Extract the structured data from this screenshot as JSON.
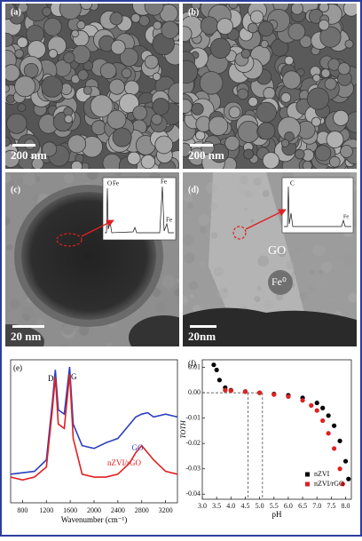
{
  "panels": [
    {
      "label": "(a)",
      "scale_bar": "200 nm"
    },
    {
      "label": "(b)",
      "scale_bar": "200 nm"
    },
    {
      "label": "(c)",
      "scale_bar": "20 nm",
      "inset_labels": [
        "O",
        "Fe",
        "Fe",
        "Fe"
      ]
    },
    {
      "label": "(d)",
      "scale_bar": "20nm",
      "inset_labels": [
        "C",
        "Fe"
      ],
      "annotations": [
        "GO",
        "Fe⁰"
      ]
    }
  ],
  "chart_data": [
    {
      "type": "line",
      "panel_label": "(e)",
      "x_label": "Wavenumber (cm⁻¹)",
      "x": [
        600,
        800,
        1000,
        1200,
        1300,
        1350,
        1400,
        1500,
        1590,
        1650,
        1800,
        2000,
        2200,
        2400,
        2600,
        2700,
        2800,
        2900,
        3000,
        3200,
        3400
      ],
      "xlim": [
        600,
        3400
      ],
      "xticks": [
        800,
        1200,
        1600,
        2000,
        2400,
        2800,
        3200
      ],
      "ylim": [
        0,
        100
      ],
      "annotations": [
        "D",
        "G"
      ],
      "series": [
        {
          "name": "GO",
          "color": "#2b3fc0",
          "values": [
            20,
            21,
            22,
            30,
            70,
            93,
            65,
            62,
            95,
            55,
            40,
            38,
            42,
            45,
            55,
            60,
            62,
            63,
            60,
            62,
            60
          ]
        },
        {
          "name": "nZVI/rGO",
          "color": "#e02020",
          "values": [
            18,
            16,
            18,
            25,
            65,
            88,
            55,
            52,
            90,
            45,
            20,
            18,
            18,
            20,
            28,
            35,
            40,
            35,
            30,
            22,
            20
          ]
        }
      ]
    },
    {
      "type": "scatter",
      "panel_label": "(f)",
      "x_label": "pH",
      "y_label": "TOTH",
      "xlim": [
        3.0,
        8.2
      ],
      "xticks": [
        {
          "value": 3.0,
          "label": "3.0"
        },
        3.5,
        {
          "value": 4.0,
          "label": "4.0"
        },
        4.5,
        {
          "value": 5.0,
          "label": "5.0"
        },
        5.5,
        {
          "value": 6.0,
          "label": "6.0"
        },
        6.5,
        {
          "value": 7.0,
          "label": "7.0"
        },
        7.5,
        {
          "value": 8.0,
          "label": "8.0"
        }
      ],
      "ylim": [
        -0.042,
        0.013
      ],
      "yticks": [
        0.01,
        {
          "value": 0,
          "label": "0.00"
        },
        -0.01,
        -0.02,
        -0.03,
        -0.04
      ],
      "reference_lines": [
        4.6,
        5.1
      ],
      "legend": "bottom-right",
      "series": [
        {
          "name": "nZVI",
          "color": "#000000",
          "x": [
            3.4,
            3.5,
            3.6,
            3.8,
            4.0,
            4.5,
            5.0,
            5.5,
            6.0,
            6.5,
            7.0,
            7.2,
            7.4,
            7.6,
            7.8,
            8.0,
            8.1
          ],
          "values": [
            0.011,
            0.009,
            0.005,
            0.002,
            0.001,
            0.0005,
            0,
            -0.0005,
            -0.001,
            -0.002,
            -0.004,
            -0.006,
            -0.009,
            -0.013,
            -0.019,
            -0.027,
            -0.034
          ]
        },
        {
          "name": "nZVI/rGO",
          "color": "#e02020",
          "x": [
            3.8,
            4.0,
            4.5,
            5.0,
            5.5,
            6.0,
            6.5,
            6.8,
            7.0,
            7.2,
            7.4,
            7.6,
            7.8,
            7.9
          ],
          "values": [
            0.001,
            0.0008,
            0.0004,
            0,
            -0.0007,
            -0.0015,
            -0.003,
            -0.005,
            -0.007,
            -0.011,
            -0.016,
            -0.022,
            -0.03,
            -0.036
          ]
        }
      ]
    }
  ]
}
